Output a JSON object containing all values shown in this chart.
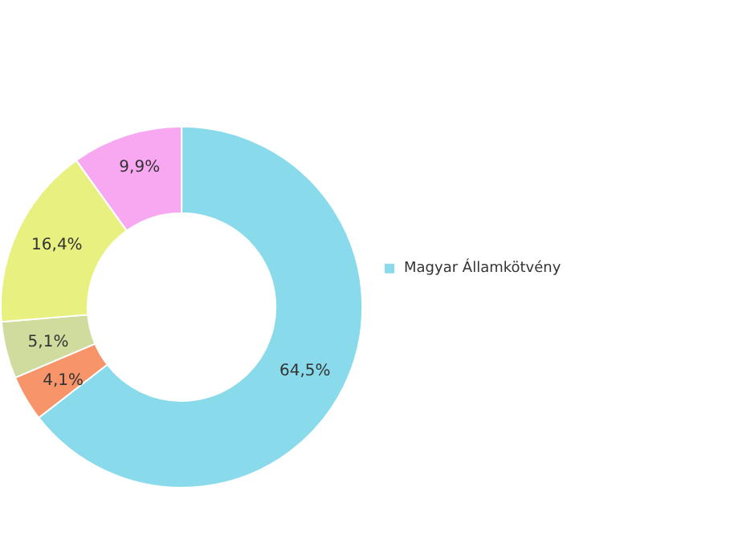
{
  "chart_data": {
    "type": "donut",
    "categories": [
      "Magyar Államkötvény",
      null,
      null,
      null,
      null
    ],
    "values": [
      64.5,
      4.1,
      5.1,
      16.4,
      9.9
    ],
    "colors": [
      "#89dbeb",
      "#f79469",
      "#d0dc9e",
      "#e8f07f",
      "#f7a8f0"
    ],
    "value_labels": [
      "64,5%",
      "4,1%",
      "5,1%",
      "16,4%",
      "9,9%"
    ],
    "legend": "right"
  }
}
